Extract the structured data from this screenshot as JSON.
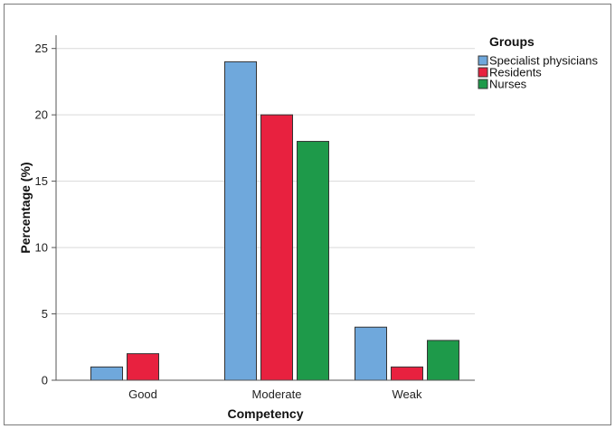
{
  "chart_data": {
    "type": "bar",
    "title": "",
    "xlabel": "Competency",
    "ylabel": "Percentage (%)",
    "categories": [
      "Good",
      "Moderate",
      "Weak"
    ],
    "ylim": [
      0,
      26
    ],
    "yticks": [
      0,
      5,
      10,
      15,
      20,
      25
    ],
    "grid": true,
    "legend": {
      "title": "Groups",
      "placement": "top-right"
    },
    "series": [
      {
        "name": "Specialist physicians",
        "color": "#6fa8dc",
        "values": [
          1,
          24,
          4
        ]
      },
      {
        "name": "Residents",
        "color": "#e8213f",
        "values": [
          2,
          20,
          1
        ]
      },
      {
        "name": "Nurses",
        "color": "#1e9a4a",
        "values": [
          0,
          18,
          3
        ]
      }
    ]
  }
}
